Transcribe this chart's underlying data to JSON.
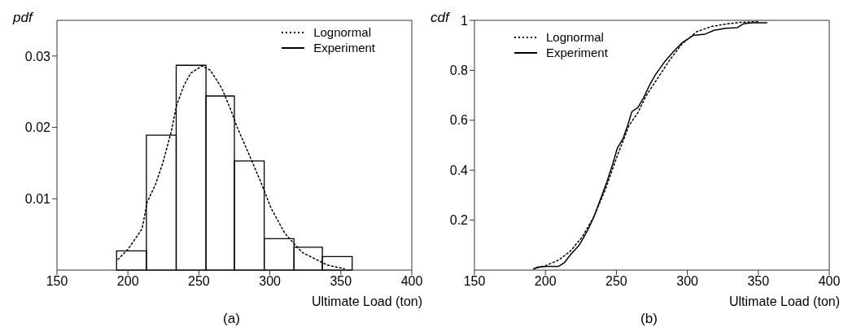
{
  "chart_data": [
    {
      "type": "histogram",
      "ylabel": "pdf",
      "xlabel": "Ultimate Load (ton)",
      "annotations": [
        "(a)"
      ],
      "xlim": [
        150,
        400
      ],
      "xticks": [
        150,
        200,
        250,
        300,
        350,
        400
      ],
      "ylim": [
        0,
        0.035
      ],
      "yticks": [
        0.01,
        0.02,
        0.03
      ],
      "legend": "top right",
      "series": [
        {
          "name": "Lognormal",
          "type": "line",
          "line_style": "dotted",
          "color": "#000000",
          "x": [
            193,
            200,
            210,
            213.5,
            219.4,
            224.4,
            230.4,
            234.3,
            239.3,
            244.2,
            252.2,
            258.1,
            266.1,
            273,
            277,
            284.9,
            292.9,
            300.8,
            310.7,
            322.6,
            332.5,
            340.5,
            352.4
          ],
          "values": [
            0.0015,
            0.0029,
            0.0058,
            0.0095,
            0.012,
            0.0149,
            0.0193,
            0.0231,
            0.0258,
            0.0276,
            0.0286,
            0.028,
            0.0255,
            0.0222,
            0.02,
            0.0164,
            0.0127,
            0.0087,
            0.0051,
            0.0025,
            0.0015,
            0.0007,
            0.0002
          ]
        },
        {
          "name": "Experiment",
          "color": "#000000",
          "bins": [
            192,
            213,
            234,
            255,
            275,
            296,
            317,
            337,
            358
          ],
          "values": [
            0.0027,
            0.0189,
            0.0287,
            0.0244,
            0.0153,
            0.0044,
            0.0032,
            0.0019
          ]
        }
      ]
    },
    {
      "type": "line",
      "ylabel": "cdf",
      "xlabel": "Ultimate Load (ton)",
      "annotations": [
        "(b)"
      ],
      "xlim": [
        150,
        400
      ],
      "xticks": [
        150,
        200,
        250,
        300,
        350,
        400
      ],
      "ylim": [
        0,
        1
      ],
      "yticks": [
        0.2,
        0.4,
        0.6,
        0.8,
        1
      ],
      "legend": "top left",
      "series": [
        {
          "name": "Lognormal",
          "line_style": "dotted",
          "color": "#000000",
          "x": [
            191.7,
            201,
            209.3,
            217.6,
            225.8,
            234.1,
            242.4,
            250.6,
            258.9,
            265.1,
            271.3,
            279.5,
            287.8,
            296,
            306.4,
            316.7,
            327,
            337.4,
            349.8
          ],
          "values": [
            0.005,
            0.02,
            0.04,
            0.076,
            0.132,
            0.213,
            0.325,
            0.457,
            0.579,
            0.63,
            0.701,
            0.772,
            0.843,
            0.904,
            0.954,
            0.975,
            0.985,
            0.992,
            0.995
          ]
        },
        {
          "name": "Experiment",
          "line_style": "solid",
          "color": "#000000",
          "x": [
            191.7,
            194.8,
            201,
            209.3,
            213.4,
            217.6,
            223.8,
            230,
            234.1,
            238.2,
            243.4,
            247.5,
            250.6,
            254.8,
            257.9,
            261,
            265.1,
            269.2,
            273.4,
            277.5,
            283.7,
            289.9,
            296,
            304.3,
            312.6,
            318.8,
            327,
            335.3,
            339.4,
            345.7,
            356
          ],
          "values": [
            0.005,
            0.012,
            0.015,
            0.015,
            0.03,
            0.061,
            0.1,
            0.162,
            0.213,
            0.274,
            0.355,
            0.426,
            0.487,
            0.528,
            0.579,
            0.635,
            0.65,
            0.69,
            0.741,
            0.782,
            0.832,
            0.873,
            0.909,
            0.94,
            0.945,
            0.96,
            0.968,
            0.971,
            0.986,
            0.99,
            0.99
          ]
        }
      ]
    }
  ]
}
